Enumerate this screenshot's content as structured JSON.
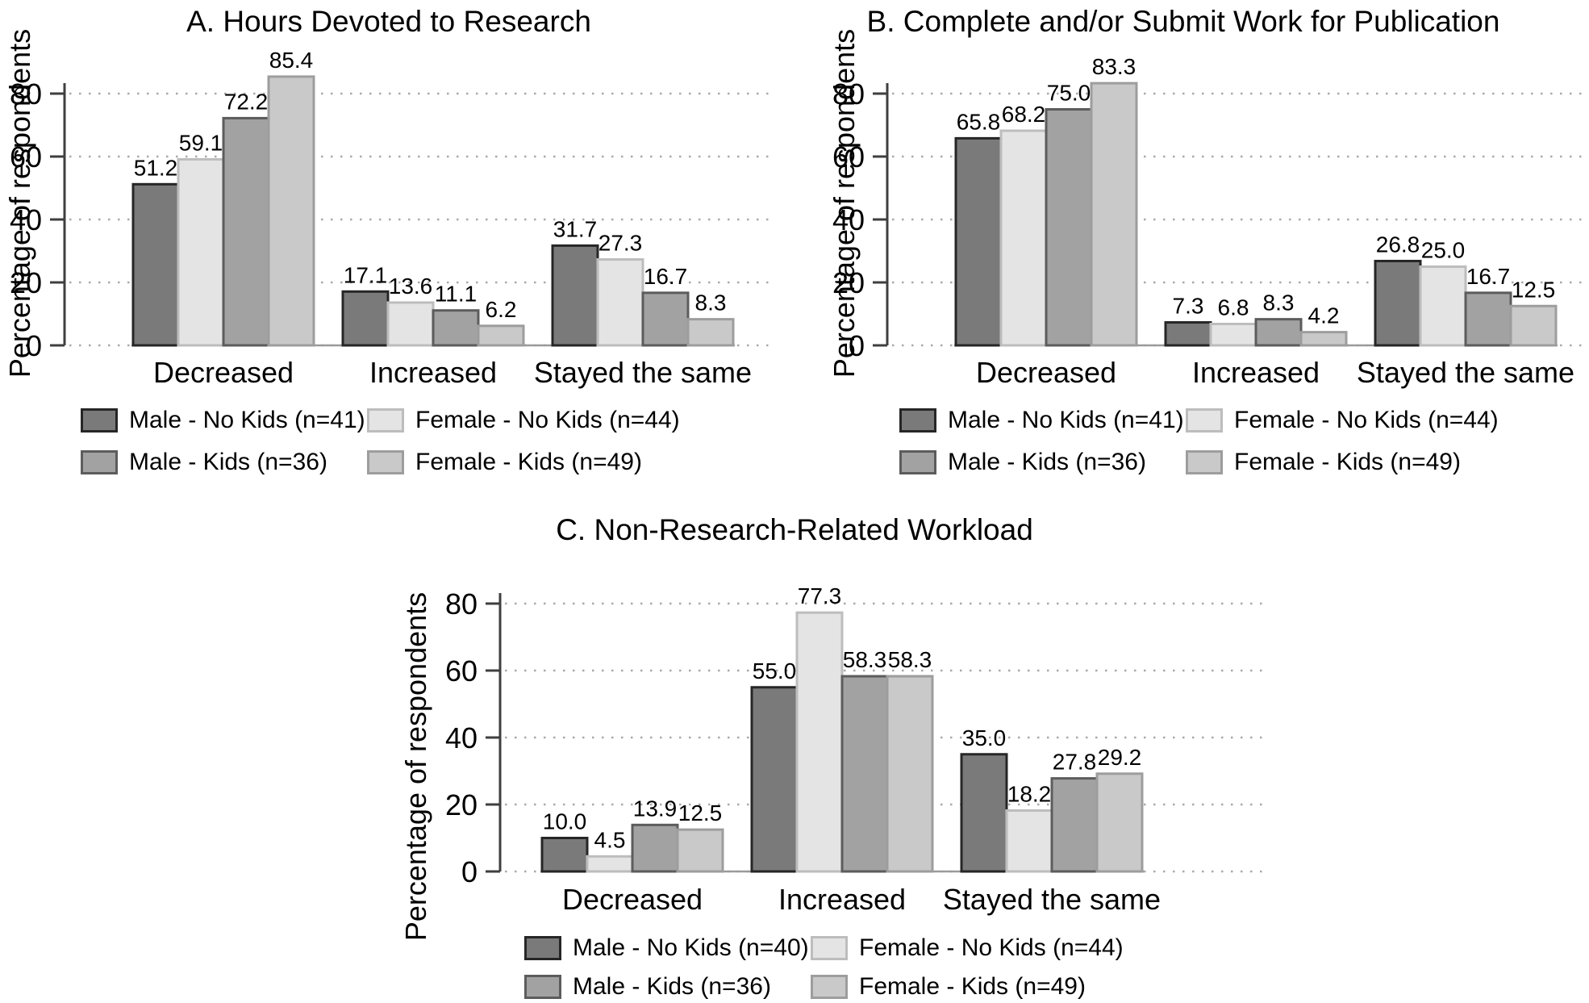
{
  "figure": {
    "background": "#ffffff",
    "text_color": "#000000"
  },
  "styles": {
    "series_colors": [
      {
        "fill": "#7a7a7a",
        "stroke": "#262626"
      },
      {
        "fill": "#e4e4e4",
        "stroke": "#bdbdbd"
      },
      {
        "fill": "#a2a2a2",
        "stroke": "#5c5c5c"
      },
      {
        "fill": "#c9c9c9",
        "stroke": "#9d9d9d"
      }
    ],
    "axis_color": "#3f3f3f",
    "gridline_color": "#a9a9a9",
    "baseline_color": "#9a9a9a",
    "text_color": "#000000"
  },
  "chart_data": [
    {
      "id": "A",
      "type": "bar",
      "title": "A. Hours Devoted to Research",
      "ylabel": "Percentage of respondents",
      "categories": [
        "Decreased",
        "Increased",
        "Stayed the same"
      ],
      "yticks": [
        0,
        20,
        40,
        60,
        80
      ],
      "ylim": [
        0,
        92
      ],
      "grid": "dotted-horizontal",
      "legend_position": "below",
      "value_label_decimals": 1,
      "series": [
        {
          "name": "Male - No Kids (n=41)",
          "values": [
            51.2,
            17.1,
            31.7
          ]
        },
        {
          "name": "Female - No Kids (n=44)",
          "values": [
            59.1,
            13.6,
            27.3
          ]
        },
        {
          "name": "Male - Kids (n=36)",
          "values": [
            72.2,
            11.1,
            16.7
          ]
        },
        {
          "name": "Female - Kids (n=49)",
          "values": [
            85.4,
            6.2,
            8.3
          ]
        }
      ]
    },
    {
      "id": "B",
      "type": "bar",
      "title": "B. Complete and/or Submit Work for Publication",
      "ylabel": "Percentage of respondents",
      "categories": [
        "Decreased",
        "Increased",
        "Stayed the same"
      ],
      "yticks": [
        0,
        20,
        40,
        60,
        80
      ],
      "ylim": [
        0,
        92
      ],
      "grid": "dotted-horizontal",
      "legend_position": "below",
      "value_label_decimals": 1,
      "series": [
        {
          "name": "Male - No Kids (n=41)",
          "values": [
            65.8,
            7.3,
            26.8
          ]
        },
        {
          "name": "Female - No Kids (n=44)",
          "values": [
            68.2,
            6.8,
            25.0
          ]
        },
        {
          "name": "Male - Kids (n=36)",
          "values": [
            75.0,
            8.3,
            16.7
          ]
        },
        {
          "name": "Female - Kids (n=49)",
          "values": [
            83.3,
            4.2,
            12.5
          ]
        }
      ]
    },
    {
      "id": "C",
      "type": "bar",
      "title": "C. Non-Research-Related Workload",
      "ylabel": "Percentage of respondents",
      "categories": [
        "Decreased",
        "Increased",
        "Stayed the same"
      ],
      "yticks": [
        0,
        20,
        40,
        60,
        80
      ],
      "ylim": [
        0,
        92
      ],
      "grid": "dotted-horizontal",
      "legend_position": "below",
      "value_label_decimals": 1,
      "series": [
        {
          "name": "Male - No Kids (n=40)",
          "values": [
            10.0,
            55.0,
            35.0
          ]
        },
        {
          "name": "Female - No Kids (n=44)",
          "values": [
            4.5,
            77.3,
            18.2
          ]
        },
        {
          "name": "Male - Kids (n=36)",
          "values": [
            13.9,
            58.3,
            27.8
          ]
        },
        {
          "name": "Female - Kids (n=49)",
          "values": [
            12.5,
            58.3,
            29.2
          ]
        }
      ]
    }
  ]
}
